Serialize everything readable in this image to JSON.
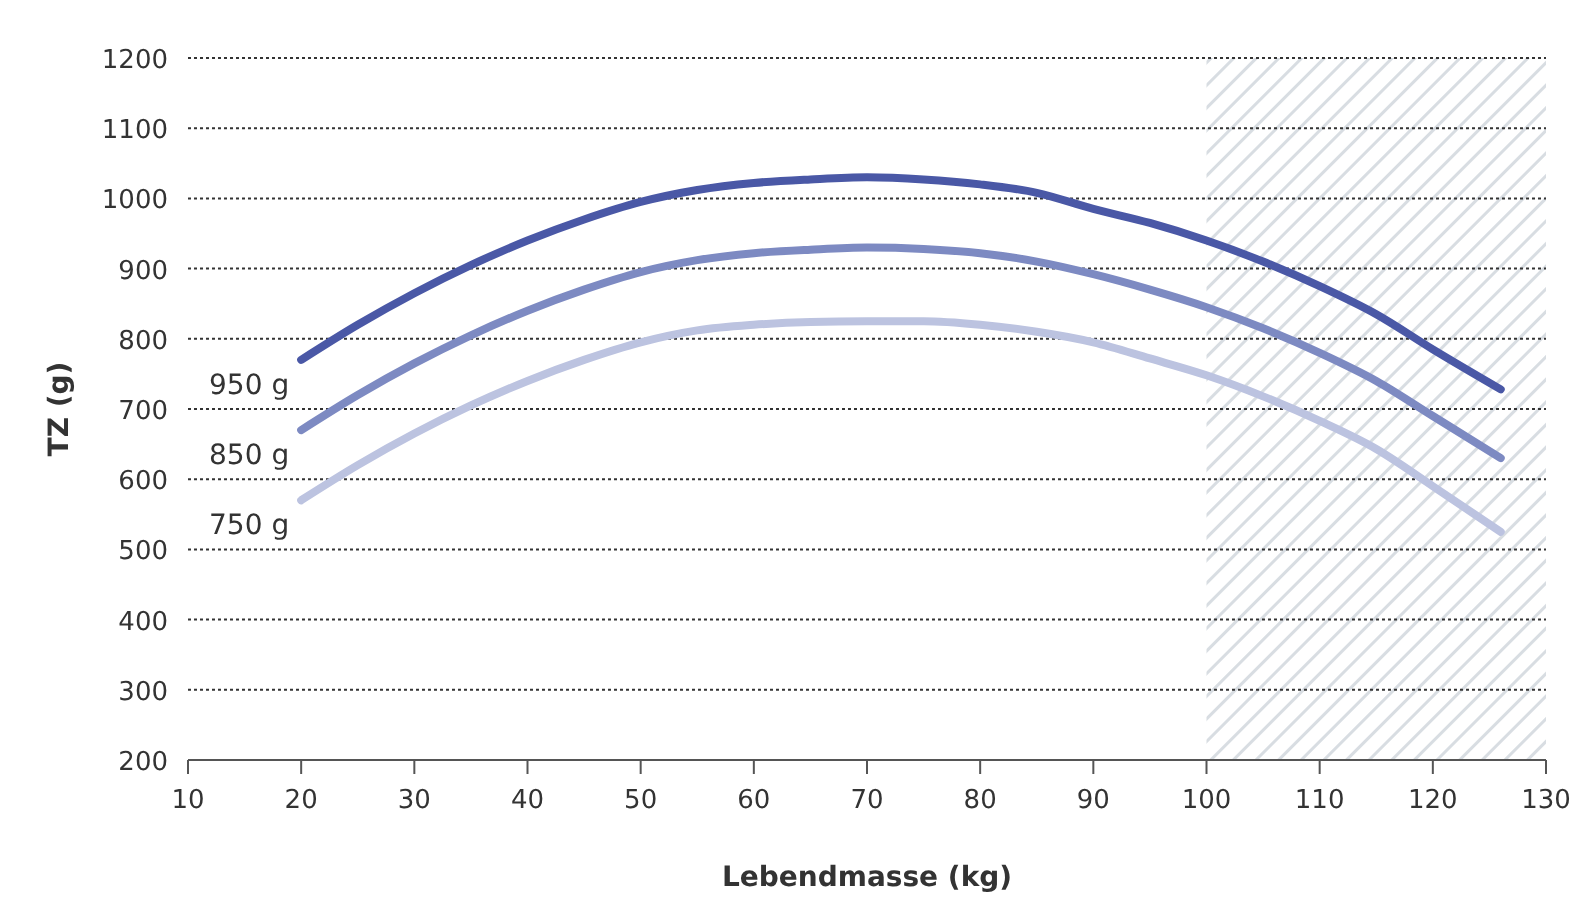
{
  "chart_data": {
    "type": "line",
    "xlabel": "Lebendmasse (kg)",
    "ylabel": "TZ (g)",
    "xlim": [
      10,
      130
    ],
    "xticks": [
      10,
      20,
      30,
      40,
      50,
      60,
      70,
      80,
      90,
      100,
      110,
      120,
      130
    ],
    "ylim": [
      200,
      1200
    ],
    "yticks": [
      200,
      300,
      400,
      500,
      600,
      700,
      800,
      900,
      1000,
      1100,
      1200
    ],
    "grid": "y",
    "bands": [
      {
        "axis": "x",
        "from": 100,
        "to": 130,
        "color": "#d8dde2"
      }
    ],
    "x": [
      20,
      25,
      30,
      35,
      40,
      45,
      50,
      55,
      60,
      65,
      70,
      75,
      80,
      85,
      90,
      95,
      100,
      105,
      110,
      115,
      120,
      126
    ],
    "series": [
      {
        "name": "950 g",
        "color": "#4a58a6",
        "values": [
          770,
          820,
          865,
          905,
          940,
          970,
          995,
          1012,
          1022,
          1027,
          1030,
          1027,
          1020,
          1008,
          985,
          965,
          940,
          910,
          875,
          835,
          785,
          728
        ]
      },
      {
        "name": "850 g",
        "color": "#7d8ac2",
        "values": [
          670,
          720,
          765,
          805,
          840,
          870,
          895,
          912,
          922,
          927,
          930,
          928,
          922,
          910,
          892,
          870,
          845,
          815,
          780,
          740,
          690,
          630
        ]
      },
      {
        "name": "750 g",
        "color": "#bcc3e0",
        "values": [
          570,
          620,
          665,
          705,
          740,
          770,
          795,
          812,
          820,
          824,
          825,
          825,
          820,
          810,
          795,
          772,
          748,
          718,
          683,
          643,
          590,
          525
        ]
      }
    ]
  }
}
